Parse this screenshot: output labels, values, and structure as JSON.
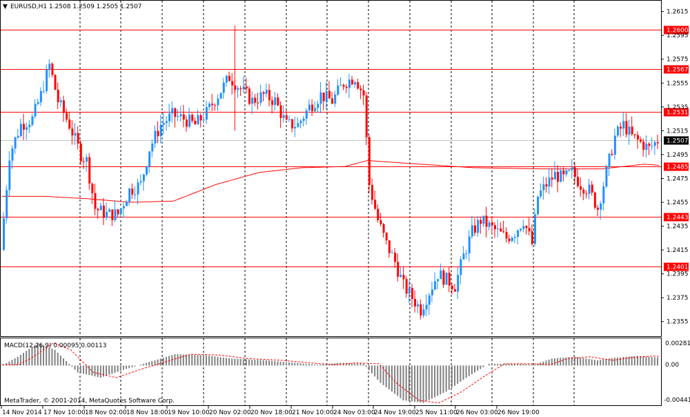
{
  "header": {
    "symbol_info": "EURUSD,H1  1.2508 1.2509 1.2505 1.2507",
    "collapse_arrow": "▼"
  },
  "colors": {
    "bull": "#1E90FF",
    "bear": "#FF0000",
    "level_line": "#FF0000",
    "ma_line": "#FF0000",
    "grid": "#000000",
    "current_price_tag": "#000000",
    "macd_hist": "#808080",
    "macd_signal": "#FF0000"
  },
  "price_axis": {
    "ticks": [
      "1.2615",
      "1.2595",
      "1.2575",
      "1.2555",
      "1.2535",
      "1.2515",
      "1.2495",
      "1.2475",
      "1.2455",
      "1.2435",
      "1.2415",
      "1.2395",
      "1.2375",
      "1.2355"
    ],
    "levels": [
      "1.2600",
      "1.2567",
      "1.2531",
      "1.2485",
      "1.2443",
      "1.2401"
    ],
    "current_price": "1.2507"
  },
  "time_axis": {
    "labels": [
      "14 Nov 2014",
      "17 Nov 10:00",
      "18 Nov 02:00",
      "18 Nov 18:00",
      "19 Nov 10:00",
      "20 Nov 02:00",
      "20 Nov 18:00",
      "21 Nov 10:00",
      "24 Nov 03:00",
      "24 Nov 19:00",
      "25 Nov 11:00",
      "26 Nov 03:00",
      "26 Nov 19:00"
    ]
  },
  "macd_panel": {
    "title": "MACD(12,26,9) 0.00095 0.00113",
    "axis_labels": [
      "0.00281",
      "0.00",
      "-0.00441"
    ],
    "footer": "MetaTrader, © 2001-2014, MetaQuotes Software Corp."
  },
  "chart_data": {
    "type": "candlestick",
    "symbol": "EURUSD",
    "timeframe": "H1",
    "ohlc_last": {
      "open": 1.2508,
      "high": 1.2509,
      "low": 1.2505,
      "close": 1.2507
    },
    "ylim": [
      1.2345,
      1.262
    ],
    "horizontal_levels": [
      1.26,
      1.2567,
      1.2531,
      1.2485,
      1.2443,
      1.2401
    ],
    "current_price": 1.2507,
    "close_path": [
      {
        "t": 0,
        "p": 1.2415
      },
      {
        "t": 3,
        "p": 1.2495
      },
      {
        "t": 7,
        "p": 1.252
      },
      {
        "t": 11,
        "p": 1.2525
      },
      {
        "t": 14,
        "p": 1.2545
      },
      {
        "t": 17,
        "p": 1.257
      },
      {
        "t": 20,
        "p": 1.254
      },
      {
        "t": 24,
        "p": 1.252
      },
      {
        "t": 28,
        "p": 1.2495
      },
      {
        "t": 30,
        "p": 1.249
      },
      {
        "t": 33,
        "p": 1.245
      },
      {
        "t": 37,
        "p": 1.2445
      },
      {
        "t": 41,
        "p": 1.2445
      },
      {
        "t": 45,
        "p": 1.2465
      },
      {
        "t": 49,
        "p": 1.247
      },
      {
        "t": 52,
        "p": 1.25
      },
      {
        "t": 56,
        "p": 1.252
      },
      {
        "t": 60,
        "p": 1.2528
      },
      {
        "t": 64,
        "p": 1.2525
      },
      {
        "t": 68,
        "p": 1.252
      },
      {
        "t": 72,
        "p": 1.253
      },
      {
        "t": 76,
        "p": 1.2545
      },
      {
        "t": 80,
        "p": 1.256
      },
      {
        "t": 84,
        "p": 1.255
      },
      {
        "t": 88,
        "p": 1.254
      },
      {
        "t": 92,
        "p": 1.2545
      },
      {
        "t": 96,
        "p": 1.254
      },
      {
        "t": 100,
        "p": 1.252
      },
      {
        "t": 104,
        "p": 1.252
      },
      {
        "t": 108,
        "p": 1.2535
      },
      {
        "t": 112,
        "p": 1.2545
      },
      {
        "t": 116,
        "p": 1.254
      },
      {
        "t": 120,
        "p": 1.2555
      },
      {
        "t": 124,
        "p": 1.256
      },
      {
        "t": 127,
        "p": 1.2545
      },
      {
        "t": 129,
        "p": 1.247
      },
      {
        "t": 132,
        "p": 1.244
      },
      {
        "t": 135,
        "p": 1.242
      },
      {
        "t": 138,
        "p": 1.2405
      },
      {
        "t": 141,
        "p": 1.2385
      },
      {
        "t": 144,
        "p": 1.2375
      },
      {
        "t": 147,
        "p": 1.2365
      },
      {
        "t": 150,
        "p": 1.238
      },
      {
        "t": 153,
        "p": 1.2395
      },
      {
        "t": 156,
        "p": 1.239
      },
      {
        "t": 159,
        "p": 1.2385
      },
      {
        "t": 162,
        "p": 1.241
      },
      {
        "t": 165,
        "p": 1.243
      },
      {
        "t": 168,
        "p": 1.244
      },
      {
        "t": 171,
        "p": 1.2435
      },
      {
        "t": 174,
        "p": 1.243
      },
      {
        "t": 177,
        "p": 1.2425
      },
      {
        "t": 180,
        "p": 1.243
      },
      {
        "t": 183,
        "p": 1.244
      },
      {
        "t": 186,
        "p": 1.242
      },
      {
        "t": 188,
        "p": 1.246
      },
      {
        "t": 191,
        "p": 1.247
      },
      {
        "t": 194,
        "p": 1.2478
      },
      {
        "t": 197,
        "p": 1.2475
      },
      {
        "t": 200,
        "p": 1.248
      },
      {
        "t": 203,
        "p": 1.247
      },
      {
        "t": 206,
        "p": 1.2465
      },
      {
        "t": 209,
        "p": 1.245
      },
      {
        "t": 212,
        "p": 1.248
      },
      {
        "t": 215,
        "p": 1.251
      },
      {
        "t": 218,
        "p": 1.252
      },
      {
        "t": 221,
        "p": 1.251
      },
      {
        "t": 224,
        "p": 1.2505
      },
      {
        "t": 227,
        "p": 1.25
      },
      {
        "t": 230,
        "p": 1.2507
      }
    ],
    "moving_average": [
      {
        "t": 0,
        "p": 1.246
      },
      {
        "t": 15,
        "p": 1.246
      },
      {
        "t": 30,
        "p": 1.2458
      },
      {
        "t": 45,
        "p": 1.2455
      },
      {
        "t": 60,
        "p": 1.2456
      },
      {
        "t": 75,
        "p": 1.247
      },
      {
        "t": 90,
        "p": 1.248
      },
      {
        "t": 105,
        "p": 1.2484
      },
      {
        "t": 120,
        "p": 1.2485
      },
      {
        "t": 128,
        "p": 1.249
      },
      {
        "t": 140,
        "p": 1.2488
      },
      {
        "t": 165,
        "p": 1.2484
      },
      {
        "t": 190,
        "p": 1.2483
      },
      {
        "t": 210,
        "p": 1.2483
      },
      {
        "t": 225,
        "p": 1.2487
      },
      {
        "t": 230,
        "p": 1.2486
      }
    ],
    "macd_hist_path": [
      {
        "t": 0,
        "v": 0.0001
      },
      {
        "t": 5,
        "v": 0.001
      },
      {
        "t": 12,
        "v": 0.0026
      },
      {
        "t": 18,
        "v": 0.0018
      },
      {
        "t": 26,
        "v": -0.0008
      },
      {
        "t": 34,
        "v": -0.0014
      },
      {
        "t": 42,
        "v": -0.0005
      },
      {
        "t": 50,
        "v": 0.0003
      },
      {
        "t": 60,
        "v": 0.0013
      },
      {
        "t": 70,
        "v": 0.0012
      },
      {
        "t": 80,
        "v": 0.0008
      },
      {
        "t": 92,
        "v": 0.0006
      },
      {
        "t": 102,
        "v": 0.0003
      },
      {
        "t": 110,
        "v": 0.0001
      },
      {
        "t": 118,
        "v": 0.0003
      },
      {
        "t": 126,
        "v": 0.0002
      },
      {
        "t": 132,
        "v": -0.002
      },
      {
        "t": 140,
        "v": -0.004
      },
      {
        "t": 147,
        "v": -0.0043
      },
      {
        "t": 155,
        "v": -0.003
      },
      {
        "t": 163,
        "v": -0.0012
      },
      {
        "t": 170,
        "v": 0.0002
      },
      {
        "t": 180,
        "v": 0.0002
      },
      {
        "t": 186,
        "v": 0.0001
      },
      {
        "t": 192,
        "v": 0.0008
      },
      {
        "t": 200,
        "v": 0.001
      },
      {
        "t": 208,
        "v": 0.0006
      },
      {
        "t": 214,
        "v": 0.0009
      },
      {
        "t": 222,
        "v": 0.0011
      },
      {
        "t": 230,
        "v": 0.0009
      }
    ]
  }
}
